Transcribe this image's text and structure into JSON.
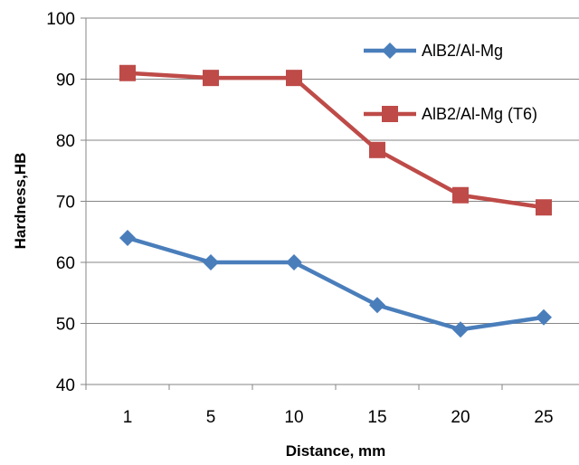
{
  "chart_data": {
    "type": "line",
    "title": "",
    "xlabel": "Distance, mm",
    "ylabel": "Hardness,HB",
    "categories": [
      "1",
      "5",
      "10",
      "15",
      "20",
      "25"
    ],
    "ylim": [
      40,
      100
    ],
    "yticks": [
      "40",
      "50",
      "60",
      "70",
      "80",
      "90",
      "100"
    ],
    "grid": "horizontal",
    "legend_position": "top-right",
    "series": [
      {
        "name": "AlB2/Al-Mg",
        "values": [
          64,
          60,
          60,
          53,
          49,
          51
        ],
        "color": "#4a7ebb",
        "marker": "diamond"
      },
      {
        "name": "AlB2/Al-Mg (T6)",
        "values": [
          91,
          90.2,
          90.2,
          78.4,
          71,
          69
        ],
        "color": "#be4b48",
        "marker": "square"
      }
    ]
  }
}
